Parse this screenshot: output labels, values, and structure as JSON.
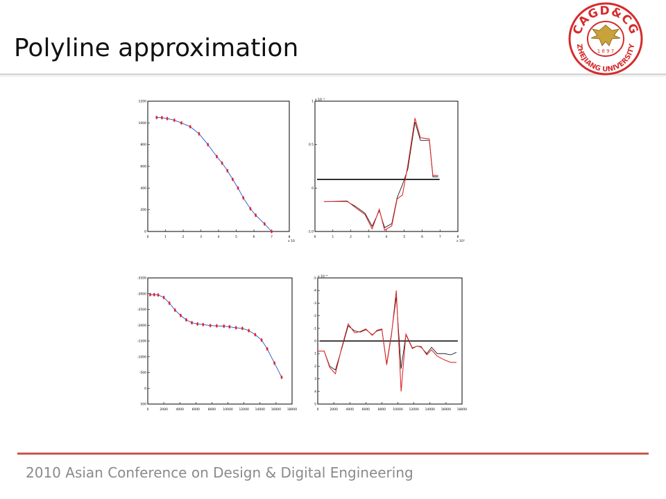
{
  "slide": {
    "title": "Polyline approximation",
    "footer": "2010 Asian Conference on Design & Digital Engineering"
  },
  "logo": {
    "top_text": "CAGD&CG",
    "bottom_text": "ZHEJIANG UNIVERSITY",
    "year": "1 8 9 7",
    "color": "#d52b2b",
    "gold": "#c9a23a"
  },
  "colors": {
    "accent_rule": "#c9574f",
    "curve_blue": "#2a4bd7",
    "curve_red": "#e0282b",
    "axis_black": "#000000"
  },
  "chart_data": [
    {
      "type": "line",
      "series": [
        {
          "x": [
            0.5,
            0.8,
            1.1,
            1.5,
            1.9,
            2.4,
            2.9,
            3.4,
            3.9,
            4.2,
            4.5,
            4.8,
            5.1,
            5.4,
            5.8,
            6.1,
            6.6,
            7.0
          ],
          "values": [
            1050,
            1048,
            1040,
            1025,
            1000,
            965,
            900,
            800,
            690,
            630,
            560,
            480,
            400,
            310,
            210,
            150,
            70,
            0
          ]
        }
      ],
      "xlim": [
        0,
        8
      ],
      "ylim": [
        0,
        1200
      ],
      "xticks": [
        "0",
        "1",
        "2",
        "3",
        "4",
        "5",
        "6",
        "7",
        "8"
      ],
      "yticks": [
        "0",
        "200",
        "400",
        "600",
        "800",
        "1000",
        "1200"
      ],
      "x_exponent": "x 10³"
    },
    {
      "type": "line",
      "series": [
        {
          "x": [
            0.5,
            1.8,
            2.3,
            2.8,
            3.2,
            3.6,
            3.9,
            4.3,
            4.6,
            4.9,
            5.2,
            5.6,
            5.9,
            6.4,
            6.6,
            6.9
          ],
          "values": [
            -0.85,
            -0.85,
            -1.05,
            -1.3,
            -1.8,
            -1.2,
            -1.85,
            -1.7,
            -0.7,
            -0.2,
            0.4,
            2.2,
            1.5,
            1.5,
            0.1,
            0.1
          ]
        },
        {
          "x": [
            0.5,
            1.8,
            2.3,
            2.8,
            3.2,
            3.6,
            3.9,
            4.3,
            4.6,
            4.9,
            5.2,
            5.6,
            5.9,
            6.4,
            6.6,
            6.9
          ],
          "values": [
            -0.85,
            -0.83,
            -1.1,
            -1.35,
            -1.9,
            -1.15,
            -1.95,
            -1.78,
            -0.75,
            -0.6,
            0.55,
            2.35,
            1.6,
            1.55,
            0.15,
            0.15
          ]
        }
      ],
      "xlim": [
        0,
        8
      ],
      "ylim": [
        -2,
        3
      ],
      "xticks": [
        "0",
        "1",
        "2",
        "3",
        "4",
        "5",
        "6",
        "7",
        "8"
      ],
      "yticks": [
        "-1.0",
        "0",
        "0.5",
        "1"
      ],
      "y_exponent": "x 10⁻³",
      "x_exponent": "x 10³"
    },
    {
      "type": "line",
      "series": [
        {
          "x": [
            300,
            800,
            1300,
            2000,
            2700,
            3400,
            4100,
            4800,
            5500,
            6200,
            6900,
            7800,
            8600,
            9500,
            10200,
            11000,
            11800,
            12600,
            13400,
            14200,
            14900,
            15800,
            16700
          ],
          "values": [
            -30,
            -30,
            -40,
            -120,
            -300,
            -520,
            -690,
            -830,
            -920,
            -960,
            -980,
            -1010,
            -1020,
            -1030,
            -1050,
            -1080,
            -1100,
            -1170,
            -1300,
            -1470,
            -1750,
            -2200,
            -2650
          ]
        }
      ],
      "xlim": [
        0,
        18000
      ],
      "ylim": [
        -3500,
        500
      ],
      "xticks": [
        "0",
        "2000",
        "4000",
        "6000",
        "8000",
        "10000",
        "12000",
        "14000",
        "16000",
        "18000"
      ],
      "yticks": [
        "500",
        "0",
        "-500",
        "-1000",
        "-1500",
        "-2000",
        "-2500",
        "-3000",
        "-3500"
      ]
    },
    {
      "type": "line",
      "series": [
        {
          "x": [
            0,
            800,
            1500,
            2200,
            3000,
            3800,
            4600,
            5300,
            6000,
            6800,
            7400,
            8000,
            8600,
            9200,
            9800,
            10400,
            11000,
            11800,
            12400,
            12900,
            13600,
            14200,
            14900,
            15800,
            16600,
            17300
          ],
          "values": [
            -0.8,
            -0.8,
            -2.0,
            -2.3,
            -0.6,
            1.2,
            0.8,
            0.7,
            0.9,
            0.5,
            0.8,
            0.9,
            -1.8,
            0.6,
            3.5,
            -2.2,
            0.5,
            -0.6,
            -0.4,
            -0.5,
            -1.0,
            -0.5,
            -1.0,
            -1.0,
            -1.1,
            -0.9
          ]
        },
        {
          "x": [
            0,
            800,
            1500,
            2200,
            3000,
            3800,
            4600,
            5300,
            6000,
            6800,
            7400,
            8000,
            8600,
            9200,
            9800,
            10400,
            11000,
            11800,
            12400,
            12900,
            13600,
            14200,
            14900,
            15800,
            16600,
            17300
          ],
          "values": [
            -0.8,
            -0.8,
            -2.1,
            -2.6,
            -0.5,
            1.35,
            0.65,
            0.75,
            0.95,
            0.45,
            0.85,
            0.95,
            -1.9,
            0.5,
            4.0,
            -4.0,
            0.55,
            -0.55,
            -0.4,
            -0.45,
            -1.1,
            -0.7,
            -1.2,
            -1.5,
            -1.7,
            -1.7
          ]
        }
      ],
      "xlim": [
        0,
        18000
      ],
      "ylim": [
        -5,
        5
      ],
      "xticks": [
        "0",
        "2000",
        "4000",
        "6000",
        "8000",
        "10000",
        "12000",
        "14000",
        "16000",
        "18000"
      ],
      "yticks": [
        "5",
        "4",
        "3",
        "2",
        "1",
        "0",
        "-1",
        "-2",
        "-3",
        "-4",
        "-5"
      ],
      "y_exponent": "x 10⁻⁴"
    }
  ]
}
